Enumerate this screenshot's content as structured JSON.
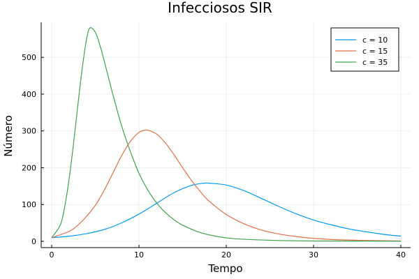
{
  "chart_data": {
    "type": "line",
    "title": "Infecciosos SIR",
    "xlabel": "Tempo",
    "ylabel": "Número",
    "xlim": [
      0,
      40
    ],
    "ylim": [
      0,
      580
    ],
    "xticks": [
      0,
      10,
      20,
      30,
      40
    ],
    "yticks": [
      0,
      100,
      200,
      300,
      400,
      500
    ],
    "grid": true,
    "legend_position": "top-right",
    "series": [
      {
        "name": "c = 10",
        "color": "#009AFA",
        "points": [
          [
            0,
            10
          ],
          [
            2,
            14
          ],
          [
            4,
            21
          ],
          [
            6,
            32
          ],
          [
            8,
            50
          ],
          [
            10,
            74
          ],
          [
            12,
            103
          ],
          [
            14,
            132
          ],
          [
            16,
            152
          ],
          [
            17.5,
            158
          ],
          [
            18,
            158
          ],
          [
            20,
            153
          ],
          [
            22,
            138
          ],
          [
            24,
            117
          ],
          [
            26,
            95
          ],
          [
            28,
            75
          ],
          [
            30,
            58
          ],
          [
            32,
            45
          ],
          [
            34,
            34
          ],
          [
            36,
            26
          ],
          [
            38,
            19
          ],
          [
            40,
            14
          ]
        ]
      },
      {
        "name": "c = 15",
        "color": "#E26F46",
        "points": [
          [
            0,
            10
          ],
          [
            2,
            27
          ],
          [
            3,
            44
          ],
          [
            4,
            68
          ],
          [
            5,
            98
          ],
          [
            6,
            138
          ],
          [
            7,
            185
          ],
          [
            8,
            232
          ],
          [
            9,
            271
          ],
          [
            10,
            296
          ],
          [
            10.7,
            302
          ],
          [
            11,
            302
          ],
          [
            12,
            292
          ],
          [
            13,
            268
          ],
          [
            14,
            236
          ],
          [
            15,
            200
          ],
          [
            16,
            166
          ],
          [
            17,
            136
          ],
          [
            18,
            110
          ],
          [
            20,
            73
          ],
          [
            22,
            48
          ],
          [
            24,
            31
          ],
          [
            26,
            20
          ],
          [
            28,
            13
          ],
          [
            30,
            8
          ],
          [
            32,
            5
          ],
          [
            35,
            3
          ],
          [
            40,
            1
          ]
        ]
      },
      {
        "name": "c = 35",
        "color": "#3DA44D",
        "points": [
          [
            0,
            10
          ],
          [
            1,
            45
          ],
          [
            1.5,
            95
          ],
          [
            2,
            170
          ],
          [
            2.5,
            265
          ],
          [
            3,
            370
          ],
          [
            3.5,
            470
          ],
          [
            4,
            550
          ],
          [
            4.4,
            580
          ],
          [
            5,
            568
          ],
          [
            5.5,
            535
          ],
          [
            6,
            492
          ],
          [
            7,
            400
          ],
          [
            8,
            315
          ],
          [
            9,
            245
          ],
          [
            10,
            185
          ],
          [
            11,
            140
          ],
          [
            12,
            105
          ],
          [
            13,
            79
          ],
          [
            14,
            59
          ],
          [
            15,
            44
          ],
          [
            17,
            24
          ],
          [
            19,
            13
          ],
          [
            21,
            7
          ],
          [
            25,
            3
          ],
          [
            30,
            1
          ],
          [
            40,
            0.5
          ]
        ]
      }
    ]
  }
}
